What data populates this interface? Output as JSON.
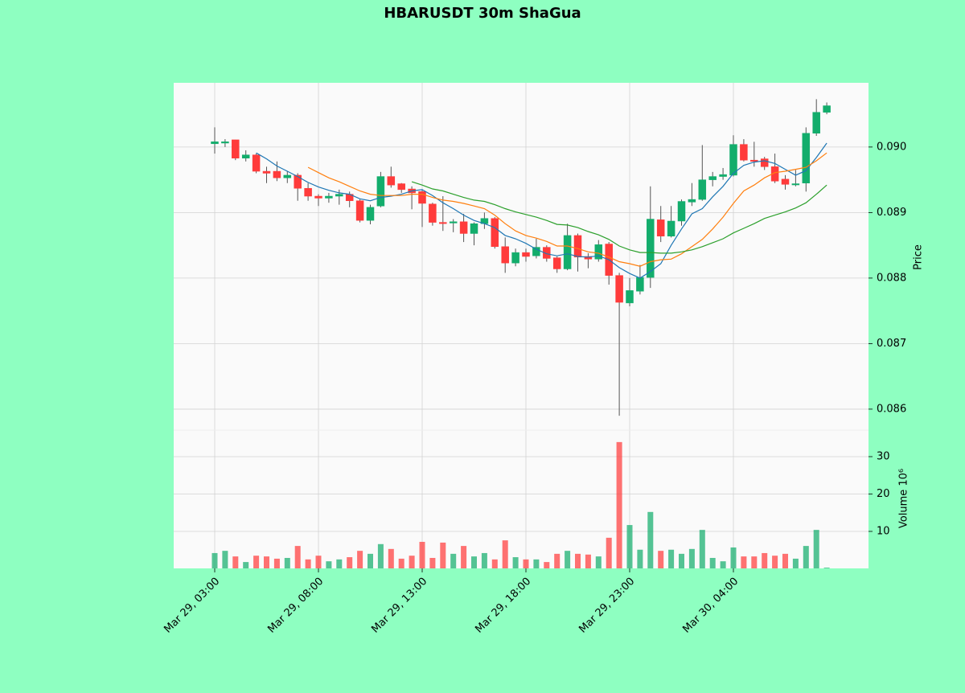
{
  "chart_data": {
    "type": "candlestick",
    "title": "HBARUSDT 30m ShaGua",
    "categories": [
      "Mar 29, 03:00",
      null,
      null,
      null,
      null,
      null,
      null,
      null,
      null,
      null,
      "Mar 29, 08:00",
      null,
      null,
      null,
      null,
      null,
      null,
      null,
      null,
      null,
      "Mar 29, 13:00",
      null,
      null,
      null,
      null,
      null,
      null,
      null,
      null,
      null,
      "Mar 29, 18:00",
      null,
      null,
      null,
      null,
      null,
      null,
      null,
      null,
      null,
      "Mar 29, 23:00",
      null,
      null,
      null,
      null,
      null,
      null,
      null,
      null,
      null,
      "Mar 30, 04:00",
      null,
      null,
      null,
      null,
      null,
      null,
      null,
      null,
      null
    ],
    "open": [
      0.09005,
      0.09006,
      0.09011,
      0.08983,
      0.08988,
      0.08963,
      0.08963,
      0.08953,
      0.08957,
      0.08937,
      0.08925,
      0.08922,
      0.08925,
      0.08928,
      0.08918,
      0.08888,
      0.0891,
      0.08955,
      0.08944,
      0.08936,
      0.08932,
      0.08913,
      0.08885,
      0.08884,
      0.08886,
      0.08868,
      0.08883,
      0.08891,
      0.08848,
      0.08823,
      0.08839,
      0.08834,
      0.08847,
      0.08831,
      0.08814,
      0.08865,
      0.08833,
      0.08829,
      0.08852,
      0.08804,
      0.08762,
      0.0878,
      0.08801,
      0.08889,
      0.08864,
      0.08887,
      0.08916,
      0.0892,
      0.0895,
      0.08955,
      0.08957,
      0.09004,
      0.0898,
      0.08982,
      0.0897,
      0.08951,
      0.08944,
      0.08945,
      0.09021,
      0.09053
    ],
    "high": [
      0.0903,
      0.09012,
      0.09011,
      0.08995,
      0.0899,
      0.0897,
      0.08978,
      0.08963,
      0.0896,
      0.08945,
      0.08928,
      0.0893,
      0.08935,
      0.08932,
      0.0892,
      0.08912,
      0.08962,
      0.0897,
      0.08945,
      0.0894,
      0.08935,
      0.08915,
      0.08925,
      0.0889,
      0.08898,
      0.08885,
      0.089,
      0.08893,
      0.08862,
      0.08845,
      0.08845,
      0.0886,
      0.0885,
      0.08833,
      0.08883,
      0.08868,
      0.08838,
      0.08858,
      0.08855,
      0.08808,
      0.088,
      0.0882,
      0.0894,
      0.0891,
      0.0891,
      0.0892,
      0.08945,
      0.09003,
      0.08962,
      0.08968,
      0.09018,
      0.09012,
      0.09008,
      0.08985,
      0.0899,
      0.08957,
      0.08965,
      0.0903,
      0.09073,
      0.09068
    ],
    "low": [
      0.0899,
      0.09,
      0.0898,
      0.08978,
      0.0896,
      0.08945,
      0.08948,
      0.08945,
      0.08918,
      0.08918,
      0.0891,
      0.08915,
      0.08912,
      0.08908,
      0.08885,
      0.08882,
      0.08908,
      0.08938,
      0.0893,
      0.08905,
      0.08878,
      0.0888,
      0.08872,
      0.0887,
      0.08855,
      0.0885,
      0.08875,
      0.08845,
      0.08808,
      0.08818,
      0.08825,
      0.0883,
      0.08825,
      0.08808,
      0.08812,
      0.0881,
      0.08815,
      0.08825,
      0.0879,
      0.0859,
      0.08757,
      0.08775,
      0.08785,
      0.08855,
      0.08862,
      0.0888,
      0.0891,
      0.08918,
      0.0894,
      0.0895,
      0.08955,
      0.08978,
      0.0897,
      0.08965,
      0.08945,
      0.08935,
      0.0894,
      0.08932,
      0.09017,
      0.0905
    ],
    "close": [
      0.09008,
      0.09008,
      0.08983,
      0.08988,
      0.08963,
      0.0896,
      0.08953,
      0.08957,
      0.08937,
      0.08925,
      0.08922,
      0.08925,
      0.08928,
      0.08918,
      0.08888,
      0.08908,
      0.08955,
      0.08942,
      0.08935,
      0.0893,
      0.08914,
      0.08885,
      0.08884,
      0.08886,
      0.08868,
      0.08883,
      0.08891,
      0.08848,
      0.08823,
      0.08839,
      0.08833,
      0.08847,
      0.0883,
      0.08814,
      0.08865,
      0.08832,
      0.08829,
      0.08851,
      0.08804,
      0.08763,
      0.08781,
      0.08801,
      0.0889,
      0.08864,
      0.08887,
      0.08917,
      0.0892,
      0.0895,
      0.08955,
      0.08958,
      0.09004,
      0.0898,
      0.08979,
      0.0897,
      0.08948,
      0.08943,
      0.08944,
      0.09021,
      0.09053,
      0.09063
    ],
    "up_color": "#13ad6c",
    "down_color": "#ff3b3b",
    "ylim": [
      0.08568,
      0.09098
    ],
    "yticks": [
      0.086,
      0.087,
      0.088,
      0.089,
      {
        "value": 0.09,
        "label": "0.090"
      }
    ],
    "ylabel": "Price",
    "grid": true,
    "moving_averages": [
      {
        "color": "#1f77b4",
        "values": [
          null,
          null,
          null,
          null,
          0.08991,
          0.08982,
          0.08971,
          0.08963,
          0.08955,
          0.08946,
          0.08939,
          0.08934,
          0.0893,
          0.08928,
          0.08921,
          0.08918,
          0.08923,
          0.08925,
          0.08928,
          0.08933,
          0.08935,
          0.08926,
          0.08915,
          0.08906,
          0.08896,
          0.08888,
          0.08883,
          0.08877,
          0.08865,
          0.0886,
          0.08853,
          0.08844,
          0.08837,
          0.08834,
          0.08837,
          0.08833,
          0.08832,
          0.08834,
          0.08828,
          0.08816,
          0.08807,
          0.088,
          0.0881,
          0.08822,
          0.0885,
          0.08875,
          0.08898,
          0.08906,
          0.08924,
          0.0894,
          0.0896,
          0.08972,
          0.08977,
          0.08979,
          0.08975,
          0.08966,
          0.08957,
          0.08964,
          0.08984,
          0.09006
        ]
      },
      {
        "color": "#ff7f0e",
        "values": [
          null,
          null,
          null,
          null,
          null,
          null,
          null,
          null,
          null,
          0.08969,
          0.08961,
          0.08953,
          0.08947,
          0.0894,
          0.08933,
          0.08928,
          0.08926,
          0.08926,
          0.08926,
          0.08928,
          0.08928,
          0.08923,
          0.08919,
          0.08917,
          0.08914,
          0.0891,
          0.08906,
          0.08896,
          0.08883,
          0.08872,
          0.08865,
          0.08861,
          0.08856,
          0.08849,
          0.08849,
          0.08845,
          0.0884,
          0.08838,
          0.08832,
          0.08825,
          0.08822,
          0.08818,
          0.08825,
          0.08828,
          0.08829,
          0.08837,
          0.08848,
          0.08859,
          0.08875,
          0.08893,
          0.08914,
          0.08933,
          0.08942,
          0.08953,
          0.08961,
          0.08963,
          0.08966,
          0.08969,
          0.08979,
          0.08991
        ]
      },
      {
        "color": "#2ca02c",
        "values": [
          null,
          null,
          null,
          null,
          null,
          null,
          null,
          null,
          null,
          null,
          null,
          null,
          null,
          null,
          null,
          null,
          null,
          null,
          null,
          0.08947,
          0.08942,
          0.08936,
          0.08933,
          0.08928,
          0.08923,
          0.08919,
          0.08917,
          0.08912,
          0.08906,
          0.08901,
          0.08897,
          0.08893,
          0.08888,
          0.08882,
          0.08881,
          0.08877,
          0.08871,
          0.08866,
          0.08859,
          0.08849,
          0.08843,
          0.08839,
          0.08839,
          0.08838,
          0.08838,
          0.0884,
          0.08843,
          0.08848,
          0.08854,
          0.0886,
          0.08869,
          0.08876,
          0.08883,
          0.08891,
          0.08896,
          0.08901,
          0.08907,
          0.08915,
          0.08928,
          0.08942
        ]
      }
    ],
    "volume": {
      "values": [
        4.2,
        4.8,
        3.3,
        1.8,
        3.5,
        3.3,
        2.7,
        2.9,
        6.1,
        2.5,
        3.5,
        2.0,
        2.5,
        3.1,
        4.8,
        4.0,
        6.6,
        5.3,
        2.7,
        3.5,
        7.2,
        2.9,
        7.0,
        4.0,
        6.1,
        3.3,
        4.2,
        2.5,
        7.6,
        3.1,
        2.5,
        2.5,
        1.8,
        4.0,
        4.8,
        4.0,
        3.8,
        3.3,
        8.3,
        33.9,
        11.7,
        5.1,
        15.2,
        4.8,
        5.1,
        4.0,
        5.3,
        10.4,
        2.9,
        2.0,
        5.7,
        3.3,
        3.3,
        4.2,
        3.5,
        4.0,
        2.7,
        6.1,
        10.4,
        0.3
      ],
      "ylim": [
        0.1,
        37.1
      ],
      "yticks": [
        10,
        20,
        30
      ],
      "ylabel": "Volume  10⁶"
    }
  }
}
